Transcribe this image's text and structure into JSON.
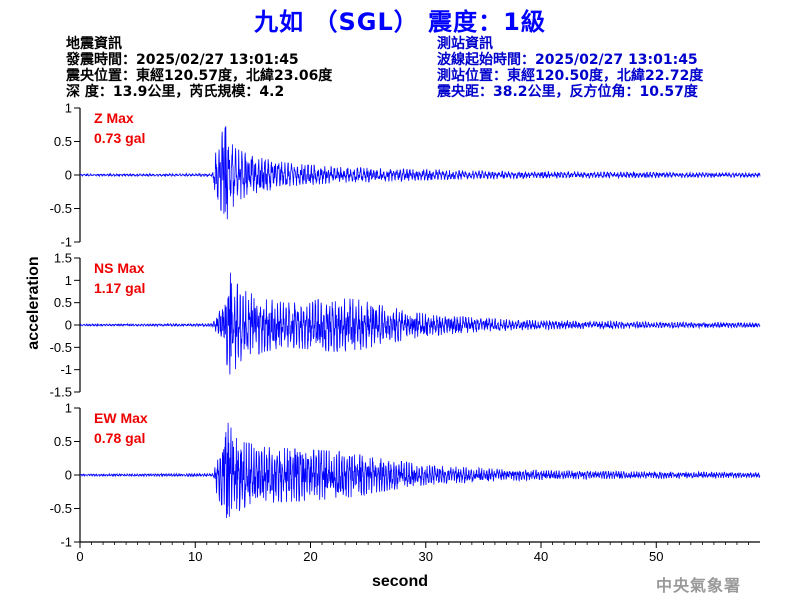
{
  "title": "九如 （SGL） 震度：1級",
  "quake_info": {
    "heading": "地震資訊",
    "origin_time": "發震時間：2025/02/27 13:01:45",
    "epicenter": "震央位置：東經120.57度，北緯23.06度",
    "depth_mag": "深   度：13.9公里，芮氏規模：4.2"
  },
  "station_info": {
    "heading": "測站資訊",
    "wave_start": "波線起始時間：2025/02/27 13:01:45",
    "location": "測站位置：東經120.50度，北緯22.72度",
    "distance": "震央距：38.2公里，反方位角：10.57度"
  },
  "agency": "中央氣象署",
  "chart_data": {
    "type": "line",
    "xlabel": "second",
    "ylabel": "acceleration",
    "xlim": [
      0,
      59
    ],
    "x_ticks": [
      0,
      10,
      20,
      30,
      40,
      50
    ],
    "line_color": "#0000ff",
    "label_color": "#ee0000",
    "panels": [
      {
        "name": "Z",
        "label": "Z Max",
        "max_text": "0.73 gal",
        "peak": 0.73,
        "ylim": [
          -1,
          1
        ],
        "y_ticks": [
          1,
          0.5,
          0,
          -0.5,
          -1
        ],
        "envelope": [
          [
            0,
            0.015
          ],
          [
            11.5,
            0.02
          ],
          [
            11.8,
            0.4
          ],
          [
            12.2,
            0.6
          ],
          [
            12.6,
            0.73
          ],
          [
            13.5,
            0.4
          ],
          [
            15,
            0.28
          ],
          [
            18,
            0.18
          ],
          [
            22,
            0.12
          ],
          [
            26,
            0.1
          ],
          [
            30,
            0.08
          ],
          [
            35,
            0.06
          ],
          [
            40,
            0.05
          ],
          [
            50,
            0.04
          ],
          [
            59,
            0.03
          ]
        ]
      },
      {
        "name": "NS",
        "label": "NS Max",
        "max_text": "1.17 gal",
        "peak": 1.17,
        "ylim": [
          -1.5,
          1.5
        ],
        "y_ticks": [
          1.5,
          1,
          0.5,
          0,
          -0.5,
          -1,
          -1.5
        ],
        "envelope": [
          [
            0,
            0.02
          ],
          [
            11.5,
            0.03
          ],
          [
            11.9,
            0.2
          ],
          [
            12.4,
            0.5
          ],
          [
            13,
            1.17
          ],
          [
            14,
            0.8
          ],
          [
            16,
            0.6
          ],
          [
            18,
            0.5
          ],
          [
            20,
            0.55
          ],
          [
            22,
            0.6
          ],
          [
            24,
            0.58
          ],
          [
            26,
            0.45
          ],
          [
            28,
            0.35
          ],
          [
            30,
            0.25
          ],
          [
            35,
            0.15
          ],
          [
            40,
            0.1
          ],
          [
            50,
            0.07
          ],
          [
            59,
            0.05
          ]
        ]
      },
      {
        "name": "EW",
        "label": "EW Max",
        "max_text": "0.78 gal",
        "peak": 0.78,
        "ylim": [
          -1,
          1
        ],
        "y_ticks": [
          1,
          0.5,
          0,
          -0.5,
          -1
        ],
        "envelope": [
          [
            0,
            0.015
          ],
          [
            11.5,
            0.02
          ],
          [
            11.8,
            0.25
          ],
          [
            12.3,
            0.5
          ],
          [
            12.8,
            0.78
          ],
          [
            14,
            0.5
          ],
          [
            16,
            0.42
          ],
          [
            18,
            0.4
          ],
          [
            20,
            0.38
          ],
          [
            22,
            0.36
          ],
          [
            24,
            0.32
          ],
          [
            26,
            0.25
          ],
          [
            30,
            0.15
          ],
          [
            35,
            0.1
          ],
          [
            40,
            0.07
          ],
          [
            50,
            0.05
          ],
          [
            59,
            0.04
          ]
        ]
      }
    ]
  }
}
